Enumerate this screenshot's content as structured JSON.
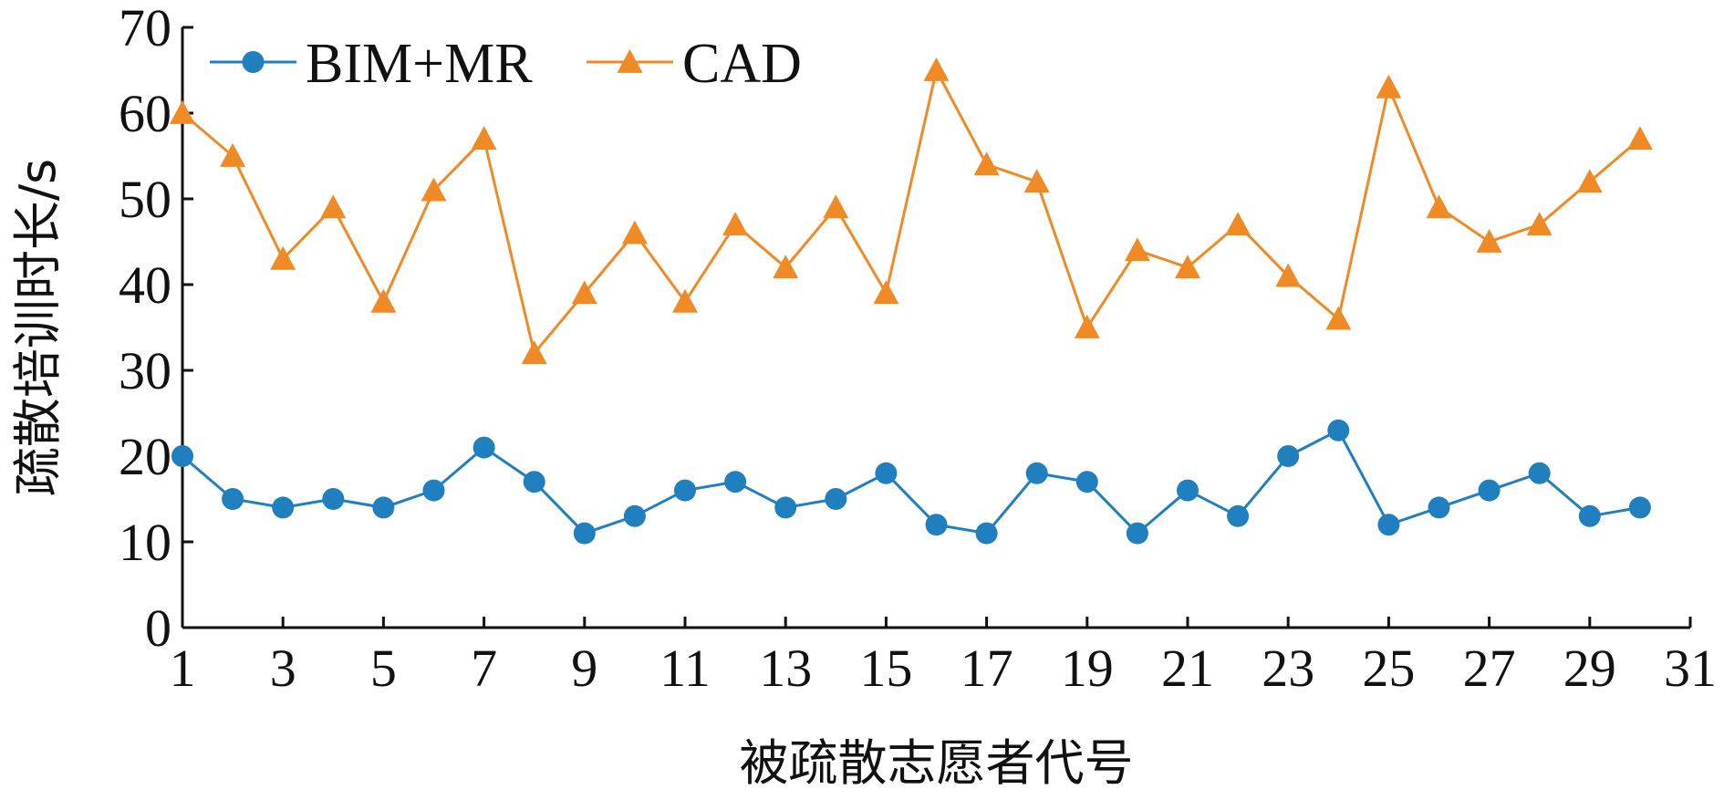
{
  "chart_data": {
    "type": "line",
    "xlabel": "被疏散志愿者代号",
    "ylabel": "疏散培训时长/s",
    "xlim": [
      1,
      31
    ],
    "ylim": [
      0,
      70
    ],
    "xticks": [
      1,
      3,
      5,
      7,
      9,
      11,
      13,
      15,
      17,
      19,
      21,
      23,
      25,
      27,
      29,
      31
    ],
    "yticks": [
      0,
      10,
      20,
      30,
      40,
      50,
      60,
      70
    ],
    "legend_position": "top-left",
    "grid": false,
    "x": [
      1,
      2,
      3,
      4,
      5,
      6,
      7,
      8,
      9,
      10,
      11,
      12,
      13,
      14,
      15,
      16,
      17,
      18,
      19,
      20,
      21,
      22,
      23,
      24,
      25,
      26,
      27,
      28,
      29,
      30
    ],
    "series": [
      {
        "name": "BIM+MR",
        "color": "#1f7fbf",
        "marker": "circle",
        "values": [
          20,
          15,
          14,
          15,
          14,
          16,
          21,
          17,
          11,
          13,
          16,
          17,
          14,
          15,
          18,
          12,
          11,
          18,
          17,
          11,
          16,
          13,
          20,
          23,
          12,
          14,
          16,
          18,
          13,
          14
        ]
      },
      {
        "name": "CAD",
        "color": "#f08a24",
        "marker": "triangle",
        "values": [
          60,
          55,
          43,
          49,
          38,
          51,
          57,
          32,
          39,
          46,
          38,
          47,
          42,
          49,
          39,
          65,
          54,
          52,
          35,
          44,
          42,
          47,
          41,
          36,
          63,
          49,
          45,
          47,
          52,
          57
        ]
      }
    ]
  }
}
